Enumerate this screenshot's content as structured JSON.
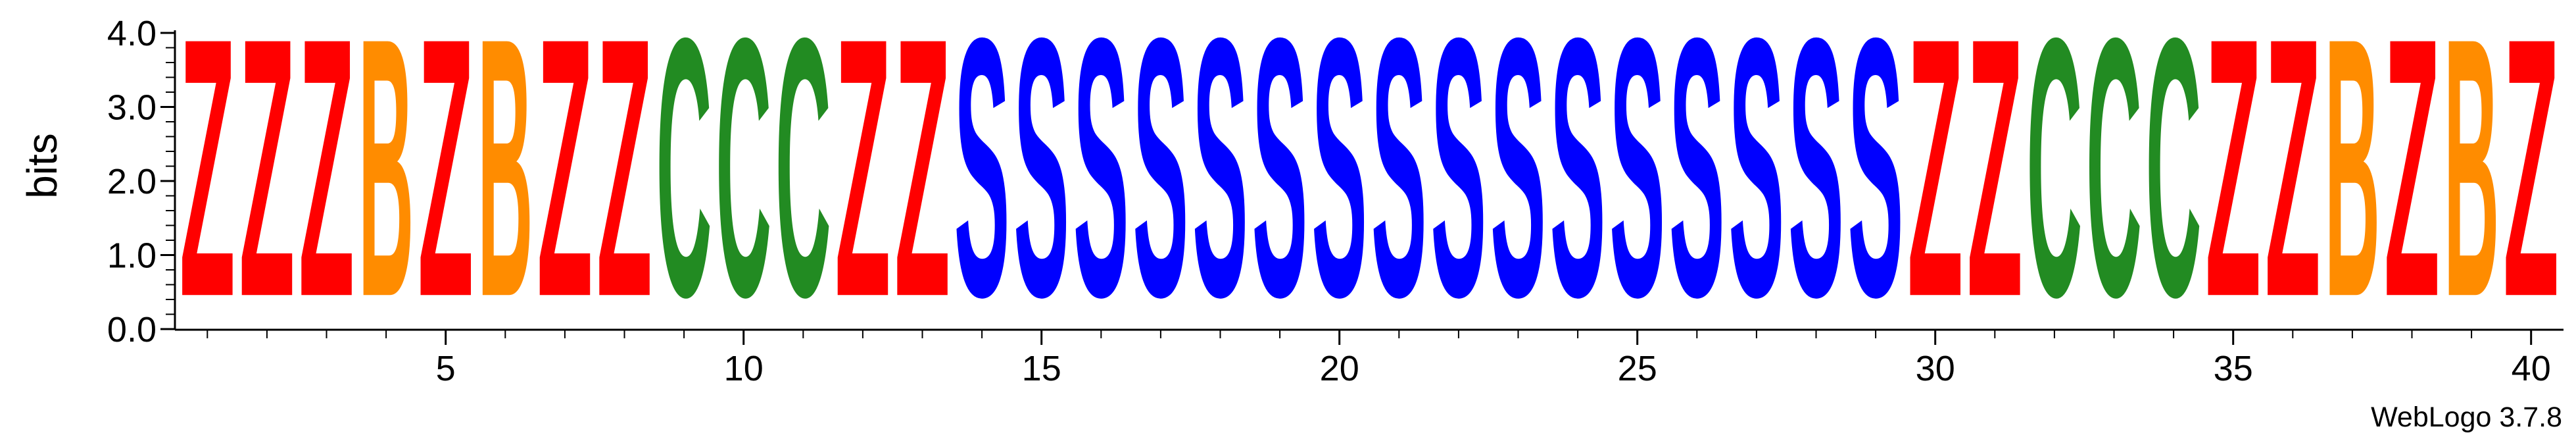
{
  "chart_data": {
    "type": "sequence-logo",
    "ylabel": "bits",
    "ylim": [
      0,
      4.0
    ],
    "y_ticks": [
      "0.0",
      "1.0",
      "2.0",
      "3.0",
      "4.0"
    ],
    "x_ticks": [
      5,
      10,
      15,
      20,
      25,
      30,
      35,
      40
    ],
    "sequence": [
      "Z",
      "Z",
      "Z",
      "B",
      "Z",
      "B",
      "Z",
      "Z",
      "C",
      "C",
      "C",
      "Z",
      "Z",
      "S",
      "S",
      "S",
      "S",
      "S",
      "S",
      "S",
      "S",
      "S",
      "S",
      "S",
      "S",
      "S",
      "S",
      "S",
      "S",
      "Z",
      "Z",
      "C",
      "C",
      "C",
      "Z",
      "Z",
      "B",
      "Z",
      "B",
      "Z"
    ],
    "height_bits": 4.0,
    "colors": {
      "Z": "#ff0000",
      "B": "#ff8c00",
      "C": "#228b22",
      "S": "#0000ff"
    }
  },
  "footer": {
    "credit": "WebLogo 3.7.8"
  }
}
